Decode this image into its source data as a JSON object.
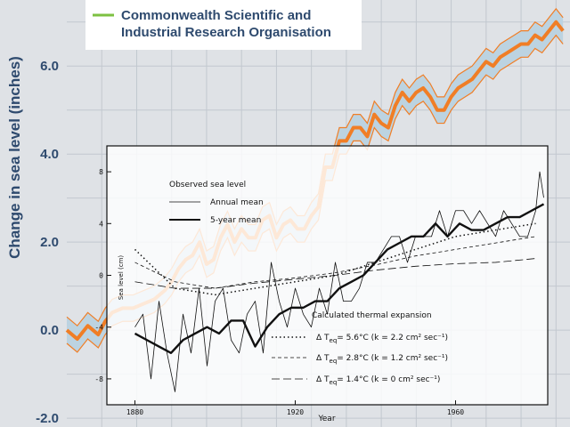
{
  "chart_data": [
    {
      "type": "line",
      "title": "",
      "legend": "Commonwealth Scientific and Industrial Research Organisation",
      "ylabel": "Change in sea level (inches)",
      "xlabel": "",
      "y_ticks": [
        "6.0",
        "4.0",
        "2.0",
        "0.0",
        "-2.0"
      ],
      "y_tick_values": [
        6,
        4,
        2,
        0,
        -2
      ],
      "xlim": [
        1870,
        2014
      ],
      "ylim": [
        -2.2,
        7.5
      ],
      "colors": {
        "line": "#f07e26",
        "band": "#bcd3e1",
        "grid": "#c2c8cf",
        "text": "#2e4a6e",
        "legend": "#7dc142"
      },
      "series": [
        {
          "name": "CSIRO sea level",
          "x": [
            1870,
            1873,
            1876,
            1879,
            1881,
            1883,
            1886,
            1889,
            1892,
            1895,
            1898,
            1900,
            1902,
            1904,
            1906,
            1908,
            1910,
            1912,
            1914,
            1916,
            1918,
            1920,
            1922,
            1924,
            1926,
            1928,
            1930,
            1932,
            1934,
            1936,
            1938,
            1940,
            1942,
            1944,
            1946,
            1948,
            1950,
            1952,
            1954,
            1956,
            1958,
            1960,
            1962,
            1964,
            1966,
            1968,
            1970,
            1972,
            1974,
            1976,
            1978,
            1980,
            1982,
            1984,
            1986,
            1988,
            1990,
            1992,
            1994,
            1996,
            1998,
            2000,
            2002,
            2004,
            2006,
            2008,
            2010,
            2012
          ],
          "values": [
            0.0,
            -0.2,
            0.1,
            -0.1,
            0.2,
            0.4,
            0.5,
            0.5,
            0.6,
            0.7,
            0.9,
            1.1,
            1.4,
            1.6,
            1.7,
            2.0,
            1.5,
            1.6,
            2.1,
            2.4,
            2.0,
            2.3,
            2.1,
            2.1,
            2.5,
            2.6,
            2.1,
            2.4,
            2.5,
            2.3,
            2.3,
            2.6,
            2.8,
            3.7,
            3.7,
            4.3,
            4.3,
            4.6,
            4.6,
            4.4,
            4.9,
            4.7,
            4.6,
            5.1,
            5.4,
            5.2,
            5.4,
            5.5,
            5.3,
            5.0,
            5.0,
            5.3,
            5.5,
            5.6,
            5.7,
            5.9,
            6.1,
            6.0,
            6.2,
            6.3,
            6.4,
            6.5,
            6.5,
            6.7,
            6.6,
            6.8,
            7.0,
            6.8
          ],
          "uncertainty": 0.3
        }
      ]
    },
    {
      "type": "line",
      "title": "Observed sea level",
      "xlabel": "Year",
      "ylabel": "Sea level (cm)",
      "x_ticks": [
        "1880",
        "1920",
        "1960"
      ],
      "x_tick_values": [
        1880,
        1920,
        1960
      ],
      "y_ticks": [
        "8",
        "4",
        "0",
        "-4",
        "-8"
      ],
      "y_tick_values": [
        8,
        4,
        0,
        -4,
        -8
      ],
      "xlim": [
        1873,
        1983
      ],
      "ylim": [
        -10,
        10
      ],
      "annotation": "Calculated thermal expansion",
      "series": [
        {
          "name": "Annual mean",
          "style": "thin",
          "x": [
            1880,
            1882,
            1884,
            1886,
            1888,
            1890,
            1892,
            1894,
            1896,
            1898,
            1900,
            1902,
            1904,
            1906,
            1908,
            1910,
            1912,
            1914,
            1916,
            1918,
            1920,
            1922,
            1924,
            1926,
            1928,
            1930,
            1932,
            1934,
            1936,
            1938,
            1940,
            1942,
            1944,
            1946,
            1948,
            1950,
            1952,
            1954,
            1956,
            1958,
            1960,
            1962,
            1964,
            1966,
            1968,
            1970,
            1972,
            1974,
            1976,
            1978,
            1980,
            1981,
            1982
          ],
          "values": [
            -4,
            -3,
            -8,
            -2,
            -6,
            -9,
            -3,
            -6,
            -1,
            -7,
            -2,
            -1,
            -5,
            -6,
            -3,
            -2,
            -6,
            1,
            -2,
            -4,
            -1,
            -3,
            -4,
            -1,
            -3,
            1,
            -2,
            -2,
            -1,
            1,
            1,
            2,
            3,
            3,
            1,
            3,
            3,
            3,
            5,
            3,
            5,
            5,
            4,
            5,
            4,
            3,
            5,
            4,
            3,
            3,
            5,
            8,
            6
          ]
        },
        {
          "name": "5-year mean",
          "style": "thick",
          "x": [
            1880,
            1883,
            1886,
            1889,
            1892,
            1895,
            1898,
            1901,
            1904,
            1907,
            1910,
            1913,
            1916,
            1919,
            1922,
            1925,
            1928,
            1931,
            1934,
            1937,
            1940,
            1943,
            1946,
            1949,
            1952,
            1955,
            1958,
            1961,
            1964,
            1967,
            1970,
            1973,
            1976,
            1979,
            1982
          ],
          "values": [
            -4.5,
            -5.0,
            -5.5,
            -6.0,
            -5.0,
            -4.5,
            -4.0,
            -4.5,
            -3.5,
            -3.5,
            -5.5,
            -4.0,
            -3.0,
            -2.5,
            -2.5,
            -2.0,
            -2.0,
            -1.0,
            -0.5,
            0.0,
            1.0,
            2.0,
            2.5,
            3.0,
            3.0,
            4.0,
            3.0,
            4.0,
            3.5,
            3.5,
            4.0,
            4.5,
            4.5,
            5.0,
            5.5
          ]
        },
        {
          "name": "ΔTeq=5.6°C (k=2.2 cm² sec⁻¹)",
          "style": "dotted",
          "x": [
            1880,
            1890,
            1900,
            1910,
            1920,
            1930,
            1940,
            1950,
            1960,
            1970,
            1980
          ],
          "values": [
            2.0,
            -1.0,
            -1.5,
            -1.0,
            -0.5,
            0.0,
            1.0,
            2.0,
            3.0,
            3.5,
            4.0
          ]
        },
        {
          "name": "ΔTeq=2.8°C (k=1.2 cm² sec⁻¹)",
          "style": "dashed",
          "x": [
            1880,
            1890,
            1900,
            1910,
            1920,
            1930,
            1940,
            1950,
            1960,
            1970,
            1980
          ],
          "values": [
            1.0,
            -0.5,
            -1.0,
            -0.5,
            -0.2,
            0.2,
            0.8,
            1.5,
            2.0,
            2.5,
            3.0
          ]
        },
        {
          "name": "ΔTeq=1.4°C (k=0 cm² sec⁻¹)",
          "style": "longdash",
          "x": [
            1880,
            1890,
            1900,
            1910,
            1920,
            1930,
            1940,
            1950,
            1960,
            1970,
            1980
          ],
          "values": [
            -0.5,
            -1.0,
            -1.0,
            -0.6,
            -0.3,
            0.0,
            0.4,
            0.7,
            0.9,
            1.0,
            1.3
          ]
        }
      ],
      "legend_title": "Observed sea level",
      "legend_labels": [
        "Annual mean",
        "5-year mean"
      ],
      "thermal_labels": [
        {
          "main": "Δ T",
          "sub": "eq",
          "rest": "= 5.6°C (k = 2.2 cm² sec⁻¹)"
        },
        {
          "main": "Δ T",
          "sub": "eq",
          "rest": "= 2.8°C (k = 1.2 cm² sec⁻¹)"
        },
        {
          "main": "Δ T",
          "sub": "eq",
          "rest": "= 1.4°C (k = 0 cm² sec⁻¹)"
        }
      ]
    }
  ]
}
